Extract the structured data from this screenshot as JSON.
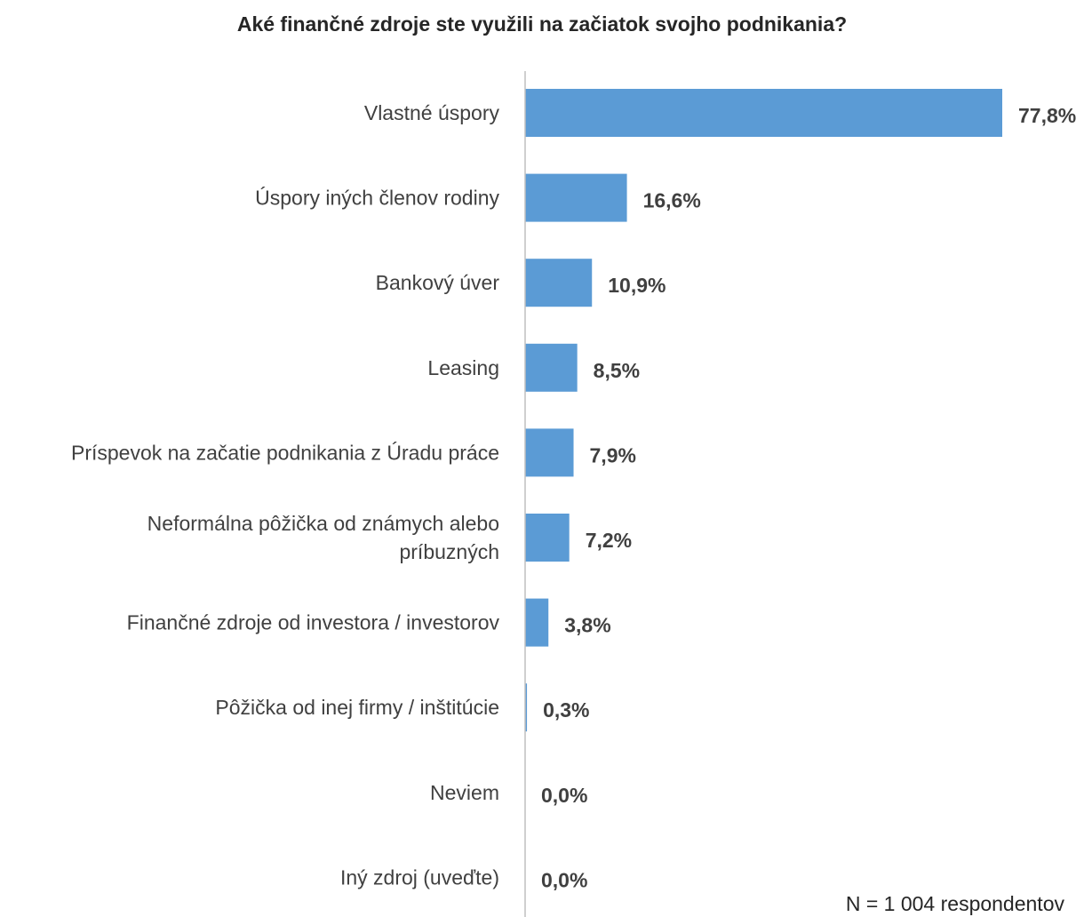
{
  "chart_data": {
    "type": "bar",
    "orientation": "horizontal",
    "title": "Aké finančné zdroje ste využili na začiatok svojho podnikania?",
    "categories": [
      [
        "Vlastné úspory"
      ],
      [
        "Úspory iných členov rodiny"
      ],
      [
        "Bankový úver"
      ],
      [
        "Leasing"
      ],
      [
        "Príspevok na začatie podnikania z Úradu práce"
      ],
      [
        "Neformálna pôžička od známych alebo",
        "príbuzných"
      ],
      [
        "Finančné zdroje od investora / investorov"
      ],
      [
        "Pôžička od inej firmy / inštitúcie"
      ],
      [
        "Neviem"
      ],
      [
        "Iný zdroj (uveďte)"
      ]
    ],
    "values": [
      77.8,
      16.6,
      10.9,
      8.5,
      7.9,
      7.2,
      3.8,
      0.3,
      0.0,
      0.0
    ],
    "value_labels": [
      "77,8%",
      "16,6%",
      "10,9%",
      "8,5%",
      "7,9%",
      "7,2%",
      "3,8%",
      "0,3%",
      "0,0%",
      "0,0%"
    ],
    "unit": "%",
    "xlim": [
      0,
      77.8
    ],
    "grid": false,
    "legend": "none",
    "bar_color": "#5B9BD5",
    "axis_color": "#BFBFBF",
    "note": "N = 1 004 respondentov"
  }
}
